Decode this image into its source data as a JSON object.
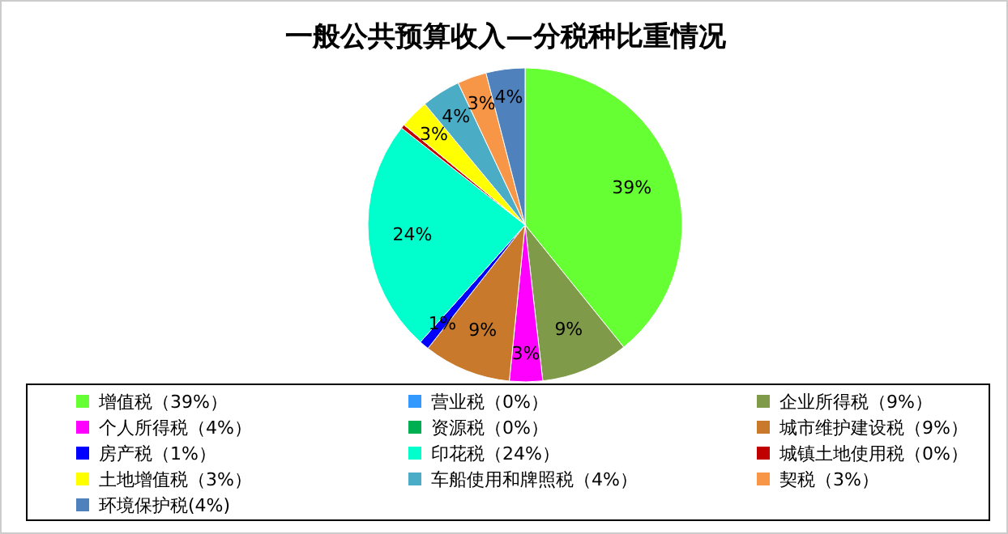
{
  "chart_data": {
    "type": "pie",
    "title": "一般公共预算收入—分税种比重情况",
    "categories": [
      "增值税（39%）",
      "营业税（0%）",
      "企业所得税（9%）",
      "个人所得税（4%）",
      "资源税（0%）",
      "城市维护建设税（9%）",
      "房产税（1%）",
      "印花税（24%）",
      "城镇土地使用税（0%）",
      "土地增值税（3%）",
      "车船使用和牌照税（4%）",
      "契税（3%）",
      "环境保护税(4%)"
    ],
    "values": [
      39.2,
      0,
      9,
      3.4,
      0,
      9,
      1,
      24,
      0.4,
      3,
      4,
      3,
      4
    ],
    "value_labels": [
      "39%",
      null,
      "9%",
      "3%",
      null,
      "9%",
      "1%",
      "24%",
      null,
      "3%",
      "4%",
      "3%",
      "4%"
    ],
    "colors": [
      "#66ff33",
      "#3399ff",
      "#7f9a48",
      "#ff00ff",
      "#00b050",
      "#c8792c",
      "#0000ff",
      "#00ffcc",
      "#c00000",
      "#ffff00",
      "#4bacc6",
      "#f79646",
      "#4f81bd"
    ],
    "legend": "bottom"
  }
}
